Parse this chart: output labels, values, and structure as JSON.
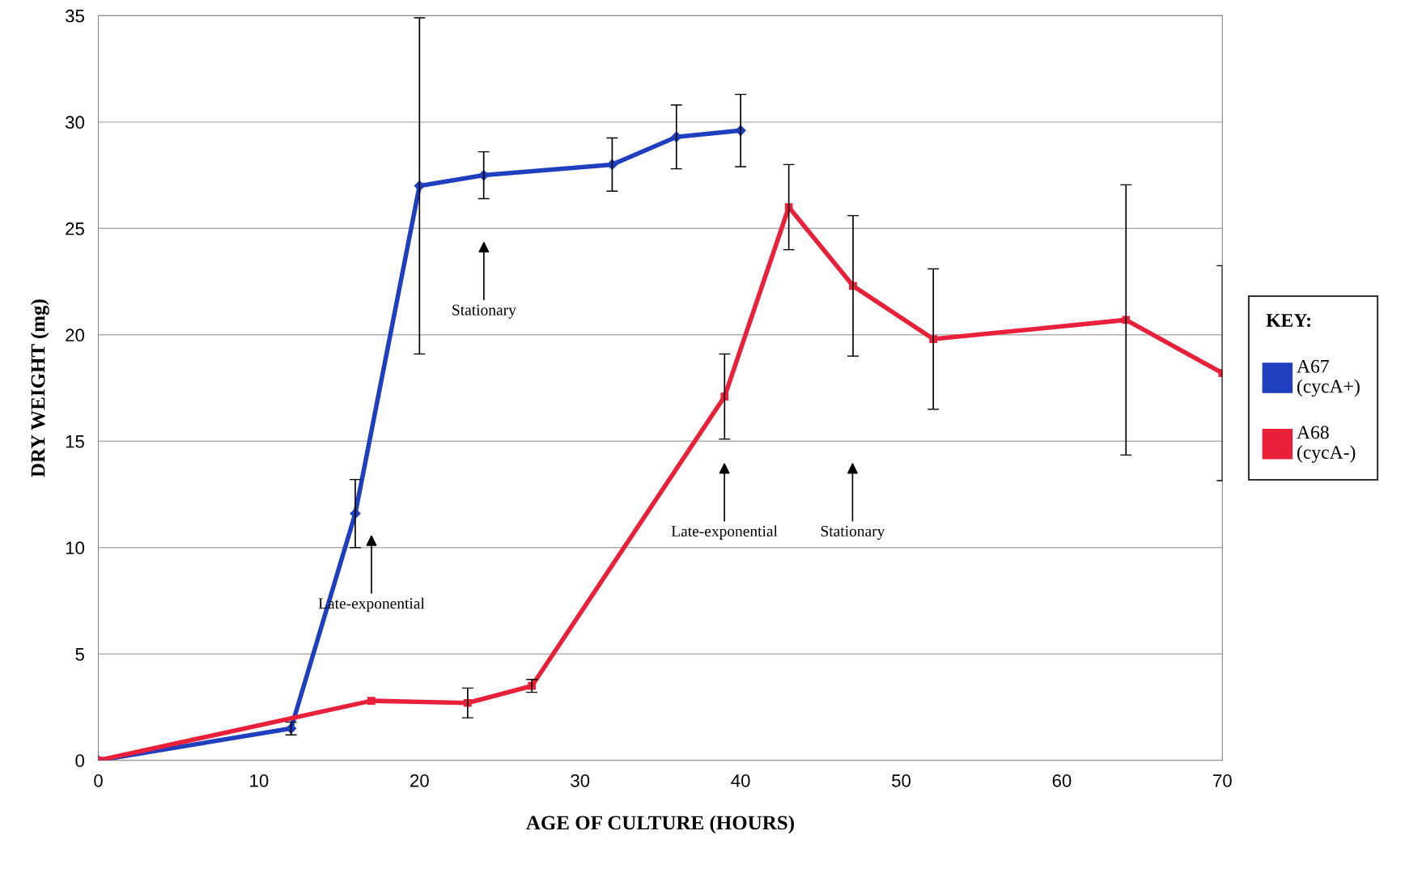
{
  "chart_data": {
    "type": "line",
    "xlabel": "AGE OF CULTURE (HOURS)",
    "ylabel": "DRY WEIGHT (mg)",
    "legend_title": "KEY:",
    "legend": "right",
    "grid": "y",
    "xlim": [
      0,
      70
    ],
    "xticks": [
      0,
      10,
      20,
      30,
      40,
      50,
      60,
      70
    ],
    "ylim": [
      0,
      35
    ],
    "yticks": [
      0,
      5,
      10,
      15,
      20,
      25,
      30,
      35
    ],
    "series": [
      {
        "name": "A67\n(cycA+)",
        "color": "#1f3fbf",
        "marker": "diamond",
        "x": [
          0,
          12,
          16,
          20,
          24,
          32,
          36,
          40
        ],
        "values": [
          0,
          1.5,
          11.6,
          27,
          27.5,
          28,
          29.3,
          29.6
        ],
        "errors": [
          null,
          0.3,
          1.6,
          7.9,
          1.1,
          1.25,
          1.5,
          1.7
        ]
      },
      {
        "name": "A68\n(cycA-)",
        "color": "#e8203a",
        "marker": "square",
        "x": [
          0,
          17,
          23,
          27,
          39,
          43,
          47,
          52,
          64,
          70
        ],
        "values": [
          0,
          2.8,
          2.7,
          3.5,
          17.1,
          26,
          22.3,
          19.8,
          20.7,
          18.2
        ],
        "errors": [
          null,
          null,
          0.7,
          0.3,
          2,
          2,
          3.3,
          3.3,
          6.35,
          5.05
        ]
      }
    ],
    "annotations": [
      "Late-exponential",
      "Stationary",
      "Late-exponential",
      "Stationary"
    ]
  }
}
